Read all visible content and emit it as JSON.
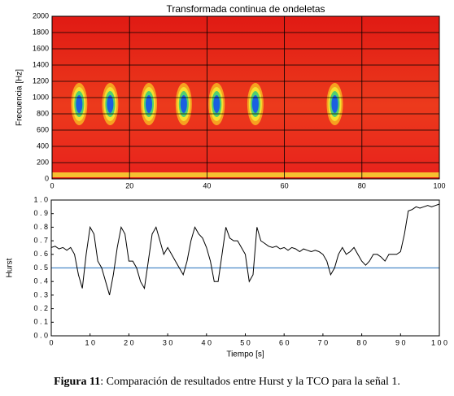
{
  "charts": [
    {
      "chart_data": {
        "type": "heatmap",
        "title": "Transformada continua de ondeletas",
        "ylabel": "Frecuencia [Hz]",
        "xlim": [
          0,
          100
        ],
        "xticks": [
          0,
          20,
          40,
          60,
          80,
          100
        ],
        "ylim": [
          0,
          2000
        ],
        "yticks": [
          0,
          200,
          400,
          600,
          800,
          1000,
          1200,
          1400,
          1600,
          1800,
          2000
        ],
        "grid": true,
        "color": "#e8241c",
        "features": {
          "x": [
            7,
            15,
            25,
            34,
            42.5,
            52.5,
            73
          ],
          "y": [
            920,
            920,
            920,
            920,
            920,
            920,
            920
          ]
        }
      }
    },
    {
      "chart_data": {
        "type": "line",
        "xlabel": "Tiempo [s]",
        "ylabel": "Hurst",
        "xlim": [
          0,
          100
        ],
        "xticks": [
          {
            "value": 0,
            "label": "0"
          },
          {
            "value": 10,
            "label": "1 0"
          },
          {
            "value": 20,
            "label": "2 0"
          },
          {
            "value": 30,
            "label": "3 0"
          },
          {
            "value": 40,
            "label": "4 0"
          },
          {
            "value": 50,
            "label": "5 0"
          },
          {
            "value": 60,
            "label": "6 0"
          },
          {
            "value": 70,
            "label": "7 0"
          },
          {
            "value": 80,
            "label": "8 0"
          },
          {
            "value": 90,
            "label": "9 0"
          },
          {
            "value": 100,
            "label": "1 0 0"
          }
        ],
        "ylim": [
          0,
          1
        ],
        "yticks": [
          {
            "value": 0,
            "label": "0 . 0"
          },
          {
            "value": 0.1,
            "label": "0 . 1"
          },
          {
            "value": 0.2,
            "label": "0 . 2"
          },
          {
            "value": 0.3,
            "label": "0 . 3"
          },
          {
            "value": 0.4,
            "label": "0 . 4"
          },
          {
            "value": 0.5,
            "label": "0 . 5"
          },
          {
            "value": 0.6,
            "label": "0 . 6"
          },
          {
            "value": 0.7,
            "label": "0 . 7"
          },
          {
            "value": 0.8,
            "label": "0 . 8"
          },
          {
            "value": 0.9,
            "label": "0 . 9"
          },
          {
            "value": 1,
            "label": "1 . 0"
          }
        ],
        "reference_line": {
          "value": 0.5,
          "color": "#4a8ac8"
        },
        "series": [
          {
            "color": "#000000",
            "x": [
              0,
              1,
              2,
              3,
              4,
              5,
              6,
              7,
              8,
              9,
              10,
              11,
              12,
              13,
              14,
              15,
              16,
              17,
              18,
              19,
              20,
              21,
              22,
              23,
              24,
              25,
              26,
              27,
              28,
              29,
              30,
              31,
              32,
              33,
              34,
              35,
              36,
              37,
              38,
              39,
              40,
              41,
              42,
              43,
              44,
              45,
              46,
              47,
              48,
              49,
              50,
              51,
              52,
              53,
              54,
              55,
              56,
              57,
              58,
              59,
              60,
              61,
              62,
              63,
              64,
              65,
              66,
              67,
              68,
              69,
              70,
              71,
              72,
              73,
              74,
              75,
              76,
              77,
              78,
              79,
              80,
              81,
              82,
              83,
              84,
              85,
              86,
              87,
              88,
              89,
              90,
              91,
              92,
              93,
              94,
              95,
              96,
              97,
              98,
              99,
              100
            ],
            "values": [
              0.65,
              0.66,
              0.64,
              0.65,
              0.63,
              0.65,
              0.6,
              0.45,
              0.35,
              0.6,
              0.8,
              0.75,
              0.55,
              0.5,
              0.4,
              0.3,
              0.45,
              0.65,
              0.8,
              0.75,
              0.55,
              0.55,
              0.5,
              0.4,
              0.35,
              0.55,
              0.75,
              0.8,
              0.7,
              0.6,
              0.65,
              0.6,
              0.55,
              0.5,
              0.45,
              0.55,
              0.7,
              0.8,
              0.75,
              0.72,
              0.65,
              0.55,
              0.4,
              0.4,
              0.6,
              0.8,
              0.72,
              0.7,
              0.7,
              0.65,
              0.6,
              0.4,
              0.45,
              0.8,
              0.7,
              0.68,
              0.66,
              0.65,
              0.66,
              0.64,
              0.65,
              0.63,
              0.65,
              0.64,
              0.62,
              0.64,
              0.63,
              0.62,
              0.63,
              0.62,
              0.6,
              0.55,
              0.45,
              0.5,
              0.6,
              0.65,
              0.6,
              0.62,
              0.65,
              0.6,
              0.55,
              0.52,
              0.55,
              0.6,
              0.6,
              0.58,
              0.55,
              0.6,
              0.6,
              0.6,
              0.62,
              0.75,
              0.92,
              0.93,
              0.95,
              0.94,
              0.95,
              0.96,
              0.95,
              0.96,
              0.97
            ]
          }
        ]
      }
    }
  ],
  "caption": {
    "label": "Figura 11",
    "text": ": Comparación de resultados entre Hurst y la TCO para la señal 1."
  }
}
